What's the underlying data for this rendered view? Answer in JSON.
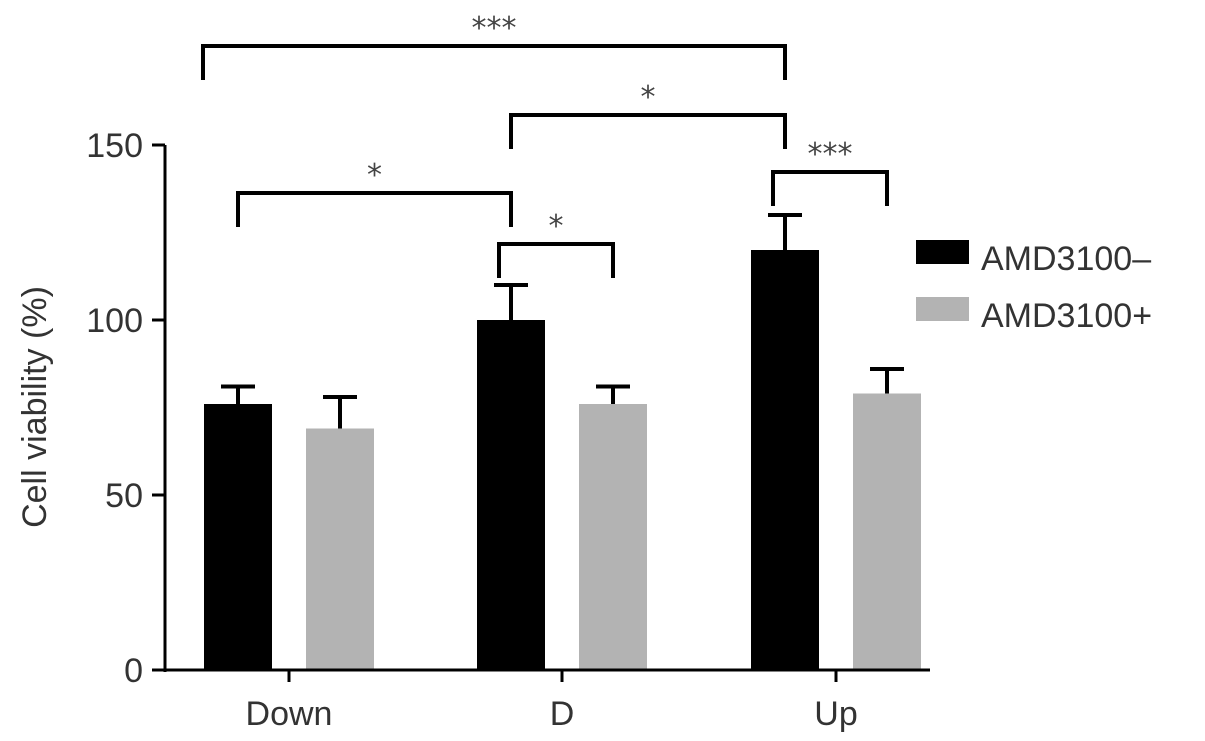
{
  "chart_data": {
    "type": "bar",
    "title": "",
    "xlabel": "",
    "ylabel": "Cell viability (%)",
    "ylim": [
      0,
      150
    ],
    "yticks": [
      0,
      50,
      100,
      150
    ],
    "categories": [
      "Down",
      "D",
      "Up"
    ],
    "legend_position": "right",
    "series": [
      {
        "name": "AMD3100–",
        "color": "#000000",
        "values": [
          76,
          100,
          120
        ],
        "errors": [
          5,
          10,
          10
        ]
      },
      {
        "name": "AMD3100+",
        "color": "#b3b3b3",
        "values": [
          69,
          76,
          79
        ],
        "errors": [
          9,
          5,
          7
        ]
      }
    ],
    "significance": [
      {
        "label": "***",
        "from": {
          "series": 0,
          "category": 0
        },
        "to": {
          "series": 0,
          "category": 2
        }
      },
      {
        "label": "*",
        "from": {
          "series": 0,
          "category": 1
        },
        "to": {
          "series": 0,
          "category": 2
        }
      },
      {
        "label": "*",
        "from": {
          "series": 0,
          "category": 0
        },
        "to": {
          "series": 0,
          "category": 1
        }
      },
      {
        "label": "*",
        "from": {
          "series": 0,
          "category": 1
        },
        "to": {
          "series": 1,
          "category": 1
        }
      },
      {
        "label": "***",
        "from": {
          "series": 0,
          "category": 2
        },
        "to": {
          "series": 1,
          "category": 2
        }
      }
    ]
  }
}
